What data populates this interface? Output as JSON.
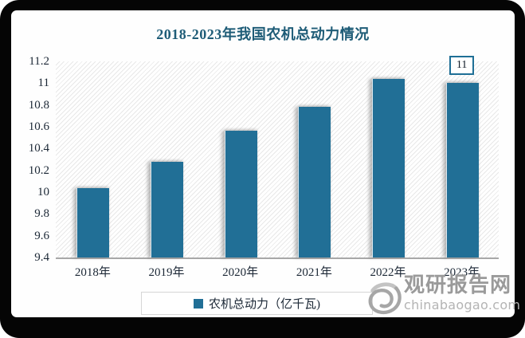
{
  "chart_data": {
    "type": "bar",
    "title": "2018-2023年我国农机总动力情况",
    "categories": [
      "2018年",
      "2019年",
      "2020年",
      "2021年",
      "2022年",
      "2023年"
    ],
    "series": [
      {
        "name": "农机总动力（亿千瓦)",
        "values": [
          10.04,
          10.28,
          10.56,
          10.78,
          11.04,
          11
        ]
      }
    ],
    "xlabel": "",
    "ylabel": "",
    "ylim": [
      9.4,
      11.2
    ],
    "ytick_step": 0.2,
    "ytick_labels": [
      "11.2",
      "11",
      "10.8",
      "10.6",
      "10.4",
      "10.2",
      "10",
      "9.8",
      "9.6",
      "9.4"
    ],
    "grid": false,
    "legend_position": "bottom",
    "bar_color": "#216F96",
    "title_color": "#1e5c77",
    "data_label": {
      "category_index": 5,
      "text": "11"
    }
  },
  "watermark": {
    "logo": "swirl-icon",
    "name": "观研报告网",
    "domain": "chinabaogao.com"
  }
}
